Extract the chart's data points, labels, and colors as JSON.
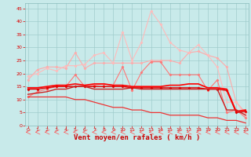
{
  "bg_color": "#c8eaea",
  "grid_color": "#a0cccc",
  "xlabel": "Vent moyen/en rafales ( km/h )",
  "ylabel_ticks": [
    0,
    5,
    10,
    15,
    20,
    25,
    30,
    35,
    40,
    45
  ],
  "x_ticks": [
    0,
    1,
    2,
    3,
    4,
    5,
    6,
    7,
    8,
    9,
    10,
    11,
    12,
    13,
    14,
    15,
    16,
    17,
    18,
    19,
    20,
    21,
    22,
    23
  ],
  "xlim": [
    -0.3,
    23.3
  ],
  "ylim": [
    0,
    47
  ],
  "series": [
    {
      "color": "#ffaaaa",
      "marker": "D",
      "markersize": 1.5,
      "linewidth": 0.8,
      "y": [
        17.5,
        21.5,
        22.5,
        22.5,
        22,
        28,
        22,
        24,
        24,
        24,
        24,
        24,
        24,
        25,
        25,
        25,
        24,
        28,
        28.5,
        27,
        26,
        22.5,
        9,
        5
      ]
    },
    {
      "color": "#ffbbbb",
      "marker": "D",
      "markersize": 1.5,
      "linewidth": 0.8,
      "y": [
        19,
        20,
        22,
        21,
        23,
        23,
        23.5,
        27,
        28,
        24,
        36,
        25,
        32,
        44,
        39,
        32,
        29,
        28,
        31,
        27,
        22.5,
        9,
        9,
        4
      ]
    },
    {
      "color": "#ff7777",
      "marker": "D",
      "markersize": 1.5,
      "linewidth": 0.8,
      "y": [
        11,
        13,
        14,
        15,
        15,
        19.5,
        15,
        15.5,
        16,
        15.5,
        22.5,
        13.5,
        20.5,
        24.5,
        24.5,
        19.5,
        19.5,
        19.5,
        19.5,
        13.5,
        17.5,
        5,
        6,
        3
      ]
    },
    {
      "color": "#dd0000",
      "marker": "D",
      "markersize": 1.5,
      "linewidth": 1.0,
      "y": [
        14,
        14,
        14.5,
        15,
        15,
        15,
        15,
        15,
        15,
        15,
        15,
        14.5,
        14.5,
        14.5,
        14.5,
        14.5,
        14.5,
        14.5,
        14.5,
        14,
        14,
        13.5,
        5,
        5.5
      ]
    },
    {
      "color": "#ff0000",
      "marker": null,
      "linewidth": 1.2,
      "y": [
        14.5,
        14.5,
        15,
        15.5,
        15.5,
        16,
        15.5,
        16,
        16,
        15.5,
        15.5,
        15,
        15,
        15,
        15,
        15.5,
        15.5,
        16,
        16,
        14.5,
        14.5,
        14,
        5.5,
        6
      ]
    },
    {
      "color": "#cc2222",
      "marker": null,
      "linewidth": 1.0,
      "y": [
        12,
        12.5,
        13,
        14,
        14,
        15,
        15,
        14,
        14,
        14,
        14,
        14.5,
        14,
        14,
        14,
        14,
        14,
        14,
        14,
        14,
        14,
        6,
        6,
        4
      ]
    },
    {
      "color": "#ee3333",
      "marker": null,
      "linewidth": 0.9,
      "y": [
        11,
        11,
        11,
        11,
        11,
        10,
        10,
        9,
        8,
        7,
        7,
        6,
        6,
        5,
        5,
        4,
        4,
        4,
        4,
        3,
        3,
        2,
        2,
        1
      ]
    }
  ],
  "arrow_color": "#ff5555",
  "tick_color": "#dd0000",
  "label_color": "#cc0000",
  "xlabel_fontsize": 6.5
}
